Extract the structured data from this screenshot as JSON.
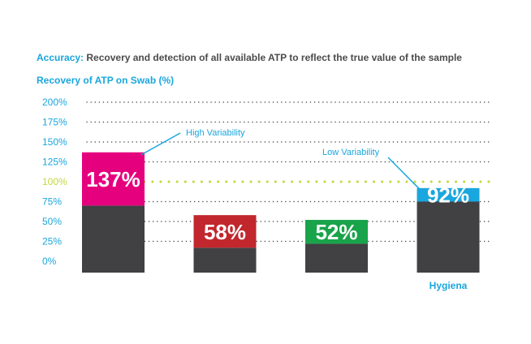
{
  "chart_data": {
    "type": "bar",
    "subtitle_label": "Accuracy:",
    "subtitle": "Recovery and detection of all available ATP to reflect the true value of the sample",
    "ylabel": "Recovery of ATP on Swab (%)",
    "ylim": [
      0,
      200
    ],
    "yticks": [
      "200%",
      "175%",
      "150%",
      "125%",
      "100%",
      "75%",
      "50%",
      "25%",
      "0%"
    ],
    "reference_line": 100,
    "categories": [
      "",
      "",
      "",
      "Hygiena"
    ],
    "values": [
      137,
      58,
      52,
      92
    ],
    "top_segment": [
      67,
      41,
      30,
      17
    ],
    "value_labels": [
      "137%",
      "58%",
      "52%",
      "92%"
    ],
    "bar_colors": [
      "#e5007e",
      "#c1272d",
      "#19a34a",
      "#1aa6de"
    ],
    "base_color": "#414042",
    "reference_color": "#c4d83b",
    "annotations": [
      {
        "text": "High Variability",
        "bar": 0
      },
      {
        "text": "Low Variability",
        "bar": 3
      }
    ],
    "grid": true
  }
}
